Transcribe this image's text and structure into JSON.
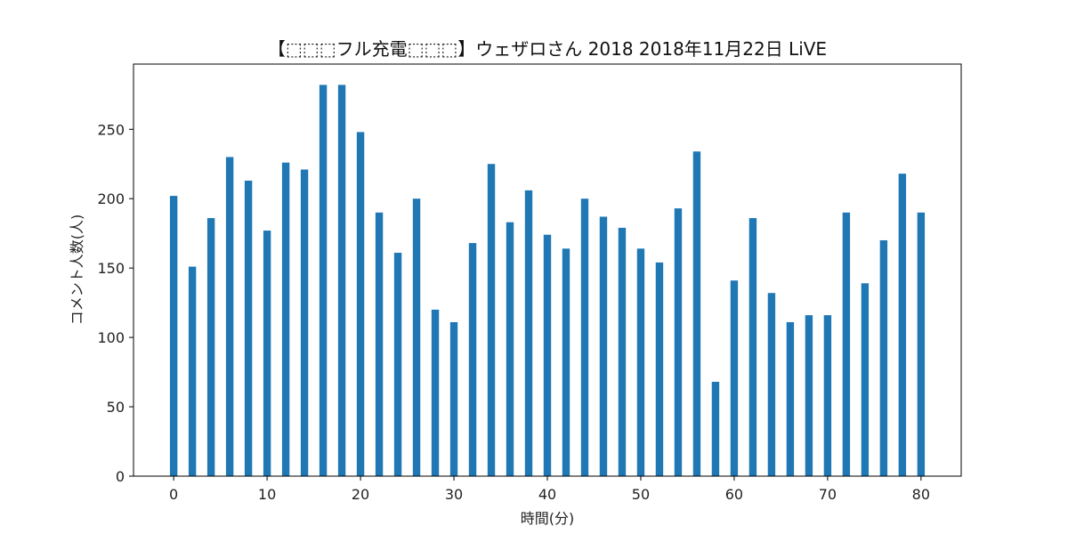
{
  "chart_data": {
    "type": "bar",
    "title": "【⬚⬚⬚フル充電⬚⬚⬚】ウェザロさん 2018 2018年11月22日 LiVE",
    "xlabel": "時間(分)",
    "ylabel": "コメント人数(人)",
    "x": [
      0,
      2,
      4,
      6,
      8,
      10,
      12,
      14,
      16,
      18,
      20,
      22,
      24,
      26,
      28,
      30,
      32,
      34,
      36,
      38,
      40,
      42,
      44,
      46,
      48,
      50,
      52,
      54,
      56,
      58,
      60,
      62,
      64,
      66,
      68,
      70,
      72,
      74,
      76,
      78,
      80
    ],
    "values": [
      202,
      151,
      186,
      230,
      213,
      177,
      226,
      221,
      282,
      282,
      248,
      190,
      161,
      200,
      120,
      111,
      168,
      225,
      183,
      206,
      174,
      164,
      200,
      187,
      179,
      164,
      154,
      193,
      234,
      68,
      141,
      186,
      132,
      111,
      116,
      116,
      190,
      139,
      170,
      218,
      190
    ],
    "xlim": [
      -4.3,
      84.3
    ],
    "ylim": [
      0,
      297
    ],
    "xticks": [
      0,
      10,
      20,
      30,
      40,
      50,
      60,
      70,
      80
    ],
    "yticks": [
      0,
      50,
      100,
      150,
      200,
      250
    ],
    "bar_color": "#1f77b4",
    "grid": false
  }
}
